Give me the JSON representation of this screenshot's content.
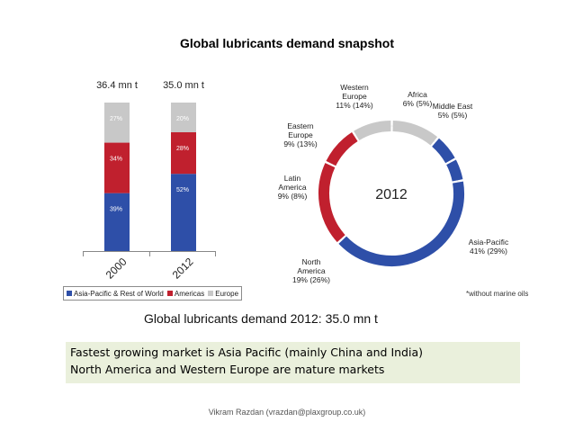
{
  "slide": {
    "title": "Global lubricants demand snapshot",
    "caption": "Global lubricants demand 2012: 35.0 mn t",
    "footnote": "*without marine oils",
    "notes": [
      "Fastest growing market is Asia Pacific (mainly China and India)",
      "North America and Western Europe are mature markets"
    ],
    "footer": "Vikram Razdan (vrazdan@plaxgroup.co.uk)"
  },
  "colors": {
    "asia": "#2e4fa8",
    "americas": "#c0202e",
    "europe": "#c8c8c8",
    "note_bg": "#eaf0dc"
  },
  "chart_data": [
    {
      "type": "bar",
      "stacked": true,
      "categories": [
        "2000",
        "2012"
      ],
      "totals": [
        "36.4 mn t",
        "35.0 mn t"
      ],
      "series": [
        {
          "name": "Asia-Pacific & Rest of World",
          "values": [
            39,
            52
          ],
          "labels": [
            "39%",
            "52%"
          ],
          "color": "#2e4fa8"
        },
        {
          "name": "Americas",
          "values": [
            34,
            28
          ],
          "labels": [
            "34%",
            "28%"
          ],
          "color": "#c0202e"
        },
        {
          "name": "Europe",
          "values": [
            27,
            20
          ],
          "labels": [
            "27%",
            "20%"
          ],
          "color": "#c8c8c8"
        }
      ],
      "ylim": [
        0,
        100
      ],
      "legend_position": "bottom"
    },
    {
      "type": "pie",
      "donut": true,
      "center_label": "2012",
      "slices": [
        {
          "name": "Africa",
          "value": 6,
          "label_lines": [
            "Africa",
            "6% (5%)"
          ],
          "color": "#2e4fa8"
        },
        {
          "name": "Middle East",
          "value": 5,
          "label_lines": [
            "Middle East",
            "5% (5%)"
          ],
          "color": "#2e4fa8"
        },
        {
          "name": "Asia-Pacific",
          "value": 41,
          "label_lines": [
            "Asia-Pacific",
            "41% (29%)"
          ],
          "color": "#2e4fa8"
        },
        {
          "name": "North America",
          "value": 19,
          "label_lines": [
            "North",
            "America",
            "19% (26%)"
          ],
          "color": "#c0202e"
        },
        {
          "name": "Latin America",
          "value": 9,
          "label_lines": [
            "Latin",
            "America",
            "9% (8%)"
          ],
          "color": "#c0202e"
        },
        {
          "name": "Eastern Europe",
          "value": 9,
          "label_lines": [
            "Eastern",
            "Europe",
            "9% (13%)"
          ],
          "color": "#c8c8c8"
        },
        {
          "name": "Western Europe",
          "value": 11,
          "label_lines": [
            "Western",
            "Europe",
            "11% (14%)"
          ],
          "color": "#c8c8c8"
        }
      ]
    }
  ]
}
